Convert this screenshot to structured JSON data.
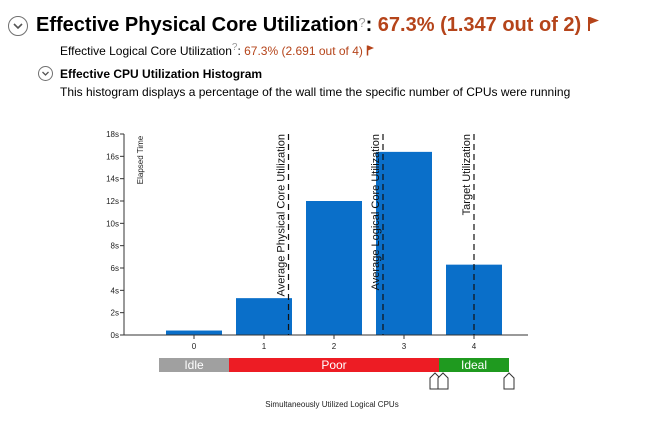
{
  "header": {
    "title": "Effective Physical Core Utilization",
    "help_glyph": "?",
    "colon": ":",
    "value": "67.3% (1.347 out of 2)",
    "flag_icon": "flag-icon"
  },
  "logical": {
    "label": "Effective Logical Core Utilization",
    "help_glyph": "?",
    "colon": ":",
    "value": "67.3% (2.691 out of 4)",
    "flag_icon": "flag-icon"
  },
  "histogram_section": {
    "title": "Effective CPU Utilization Histogram",
    "description": "This histogram displays a percentage of the wall time the specific number of CPUs were running"
  },
  "colors": {
    "accent": "#b5441a",
    "bar": "#0a6fc9",
    "idle": "#a0a0a0",
    "poor": "#ed1c24",
    "ideal": "#1f9a1f"
  },
  "chart_data": {
    "type": "bar",
    "categories": [
      "0",
      "1",
      "2",
      "3",
      "4"
    ],
    "values": [
      0.4,
      3.3,
      12.0,
      16.4,
      6.3
    ],
    "ylabel": "Elapsed Time",
    "xlabel": "Simultaneously Utilized Logical CPUs",
    "ylim": [
      0,
      18
    ],
    "yticks": [
      0,
      2,
      4,
      6,
      8,
      10,
      12,
      14,
      16,
      18
    ],
    "ytick_labels": [
      "0s",
      "2s",
      "4s",
      "6s",
      "8s",
      "10s",
      "12s",
      "14s",
      "16s",
      "18s"
    ],
    "markers": [
      {
        "label": "Average Physical Core Utilization",
        "x": 1.35
      },
      {
        "label": "Average Logical Core Utilization",
        "x": 2.7
      },
      {
        "label": "Target Utilization",
        "x": 4.0
      }
    ],
    "ranges": [
      {
        "label": "Idle",
        "from": -0.5,
        "to": 0.5,
        "color": "#a0a0a0"
      },
      {
        "label": "Poor",
        "from": 0.5,
        "to": 3.5,
        "color": "#ed1c24"
      },
      {
        "label": "Ideal",
        "from": 3.5,
        "to": 4.5,
        "color": "#1f9a1f"
      }
    ],
    "slider_handles": [
      3.5,
      4.5
    ]
  }
}
